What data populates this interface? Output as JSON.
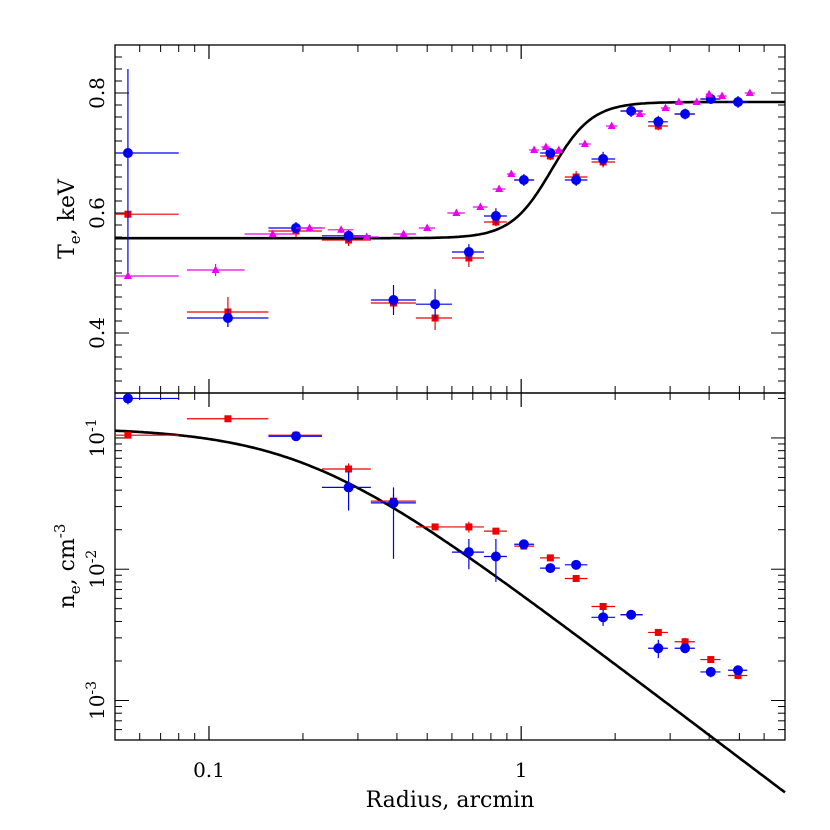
{
  "chart_data": [
    {
      "type": "scatter",
      "panel": "top",
      "ylabel_main": "T",
      "ylabel_sub": "e",
      "ylabel_rest": ", keV",
      "xlim": [
        0.05,
        7.0
      ],
      "ylim": [
        0.3,
        0.88
      ],
      "yticks": [
        0.4,
        0.6,
        0.8
      ],
      "ytick_labels": [
        "0.4",
        "0.6",
        "0.8"
      ],
      "colors": {
        "red": "#ee0000",
        "blue": "#0000ee",
        "magenta": "#ee00ee",
        "model": "#000000"
      },
      "series": [
        {
          "marker": "square",
          "color": "red",
          "points": [
            {
              "x": 0.055,
              "y": 0.598,
              "xlo": 0.05,
              "xhi": 0.08,
              "ylo": 0.598,
              "yhi": 0.598
            },
            {
              "x": 0.115,
              "y": 0.435,
              "xlo": 0.085,
              "xhi": 0.155,
              "ylo": 0.41,
              "yhi": 0.46
            },
            {
              "x": 0.19,
              "y": 0.57,
              "xlo": 0.155,
              "xhi": 0.23,
              "ylo": 0.56,
              "yhi": 0.58
            },
            {
              "x": 0.28,
              "y": 0.555,
              "xlo": 0.23,
              "xhi": 0.33,
              "ylo": 0.545,
              "yhi": 0.565
            },
            {
              "x": 0.39,
              "y": 0.45,
              "xlo": 0.33,
              "xhi": 0.46,
              "ylo": 0.44,
              "yhi": 0.46
            },
            {
              "x": 0.53,
              "y": 0.425,
              "xlo": 0.46,
              "xhi": 0.6,
              "ylo": 0.405,
              "yhi": 0.445
            },
            {
              "x": 0.68,
              "y": 0.525,
              "xlo": 0.6,
              "xhi": 0.76,
              "ylo": 0.51,
              "yhi": 0.54
            },
            {
              "x": 0.83,
              "y": 0.585,
              "xlo": 0.76,
              "xhi": 0.9,
              "ylo": 0.578,
              "yhi": 0.592
            },
            {
              "x": 1.02,
              "y": 0.655,
              "xlo": 0.95,
              "xhi": 1.1,
              "ylo": 0.648,
              "yhi": 0.662
            },
            {
              "x": 1.24,
              "y": 0.695,
              "xlo": 1.15,
              "xhi": 1.33,
              "ylo": 0.688,
              "yhi": 0.702
            },
            {
              "x": 1.5,
              "y": 0.66,
              "xlo": 1.38,
              "xhi": 1.63,
              "ylo": 0.65,
              "yhi": 0.67
            },
            {
              "x": 1.83,
              "y": 0.685,
              "xlo": 1.68,
              "xhi": 2.0,
              "ylo": 0.676,
              "yhi": 0.694
            },
            {
              "x": 2.25,
              "y": 0.77,
              "xlo": 2.08,
              "xhi": 2.45,
              "ylo": 0.763,
              "yhi": 0.777
            },
            {
              "x": 2.75,
              "y": 0.745,
              "xlo": 2.55,
              "xhi": 2.95,
              "ylo": 0.738,
              "yhi": 0.752
            },
            {
              "x": 3.35,
              "y": 0.765,
              "xlo": 3.1,
              "xhi": 3.6,
              "ylo": 0.758,
              "yhi": 0.772
            },
            {
              "x": 4.05,
              "y": 0.79,
              "xlo": 3.75,
              "xhi": 4.35,
              "ylo": 0.783,
              "yhi": 0.797
            },
            {
              "x": 4.95,
              "y": 0.785,
              "xlo": 4.6,
              "xhi": 5.3,
              "ylo": 0.778,
              "yhi": 0.792
            }
          ]
        },
        {
          "marker": "circle",
          "color": "blue",
          "points": [
            {
              "x": 0.055,
              "y": 0.7,
              "xlo": 0.05,
              "xhi": 0.08,
              "ylo": 0.49,
              "yhi": 0.84
            },
            {
              "x": 0.115,
              "y": 0.425,
              "xlo": 0.085,
              "xhi": 0.155,
              "ylo": 0.41,
              "yhi": 0.44
            },
            {
              "x": 0.19,
              "y": 0.575,
              "xlo": 0.155,
              "xhi": 0.23,
              "ylo": 0.565,
              "yhi": 0.585
            },
            {
              "x": 0.28,
              "y": 0.562,
              "xlo": 0.23,
              "xhi": 0.33,
              "ylo": 0.552,
              "yhi": 0.572
            },
            {
              "x": 0.39,
              "y": 0.455,
              "xlo": 0.33,
              "xhi": 0.46,
              "ylo": 0.43,
              "yhi": 0.48
            },
            {
              "x": 0.53,
              "y": 0.448,
              "xlo": 0.46,
              "xhi": 0.6,
              "ylo": 0.423,
              "yhi": 0.473
            },
            {
              "x": 0.68,
              "y": 0.535,
              "xlo": 0.6,
              "xhi": 0.76,
              "ylo": 0.522,
              "yhi": 0.548
            },
            {
              "x": 0.83,
              "y": 0.595,
              "xlo": 0.76,
              "xhi": 0.9,
              "ylo": 0.582,
              "yhi": 0.608
            },
            {
              "x": 1.02,
              "y": 0.655,
              "xlo": 0.95,
              "xhi": 1.1,
              "ylo": 0.645,
              "yhi": 0.665
            },
            {
              "x": 1.24,
              "y": 0.7,
              "xlo": 1.15,
              "xhi": 1.33,
              "ylo": 0.692,
              "yhi": 0.708
            },
            {
              "x": 1.5,
              "y": 0.655,
              "xlo": 1.38,
              "xhi": 1.63,
              "ylo": 0.645,
              "yhi": 0.665
            },
            {
              "x": 1.83,
              "y": 0.69,
              "xlo": 1.68,
              "xhi": 2.0,
              "ylo": 0.678,
              "yhi": 0.702
            },
            {
              "x": 2.25,
              "y": 0.77,
              "xlo": 2.08,
              "xhi": 2.45,
              "ylo": 0.76,
              "yhi": 0.78
            },
            {
              "x": 2.75,
              "y": 0.752,
              "xlo": 2.55,
              "xhi": 2.95,
              "ylo": 0.742,
              "yhi": 0.762
            },
            {
              "x": 3.35,
              "y": 0.765,
              "xlo": 3.1,
              "xhi": 3.6,
              "ylo": 0.756,
              "yhi": 0.774
            },
            {
              "x": 4.05,
              "y": 0.79,
              "xlo": 3.75,
              "xhi": 4.35,
              "ylo": 0.782,
              "yhi": 0.798
            },
            {
              "x": 4.95,
              "y": 0.785,
              "xlo": 4.6,
              "xhi": 5.3,
              "ylo": 0.775,
              "yhi": 0.795
            }
          ]
        },
        {
          "marker": "triangle",
          "color": "magenta",
          "points": [
            {
              "x": 0.055,
              "y": 0.495,
              "xlo": 0.05,
              "xhi": 0.08,
              "ylo": 0.495,
              "yhi": 0.495
            },
            {
              "x": 0.105,
              "y": 0.505,
              "xlo": 0.085,
              "xhi": 0.13,
              "ylo": 0.495,
              "yhi": 0.515
            },
            {
              "x": 0.16,
              "y": 0.565,
              "xlo": 0.13,
              "xhi": 0.19,
              "ylo": 0.56,
              "yhi": 0.57
            },
            {
              "x": 0.21,
              "y": 0.575,
              "xlo": 0.19,
              "xhi": 0.235,
              "ylo": 0.57,
              "yhi": 0.58
            },
            {
              "x": 0.265,
              "y": 0.572,
              "xlo": 0.24,
              "xhi": 0.29,
              "ylo": 0.567,
              "yhi": 0.577
            },
            {
              "x": 0.32,
              "y": 0.56,
              "xlo": 0.29,
              "xhi": 0.35,
              "ylo": 0.555,
              "yhi": 0.565
            },
            {
              "x": 0.42,
              "y": 0.565,
              "xlo": 0.39,
              "xhi": 0.46,
              "ylo": 0.56,
              "yhi": 0.57
            },
            {
              "x": 0.5,
              "y": 0.575,
              "xlo": 0.47,
              "xhi": 0.53,
              "ylo": 0.57,
              "yhi": 0.58
            },
            {
              "x": 0.62,
              "y": 0.6,
              "xlo": 0.58,
              "xhi": 0.66,
              "ylo": 0.595,
              "yhi": 0.605
            },
            {
              "x": 0.74,
              "y": 0.61,
              "xlo": 0.7,
              "xhi": 0.78,
              "ylo": 0.605,
              "yhi": 0.615
            },
            {
              "x": 0.85,
              "y": 0.64,
              "xlo": 0.81,
              "xhi": 0.89,
              "ylo": 0.635,
              "yhi": 0.645
            },
            {
              "x": 0.93,
              "y": 0.665,
              "xlo": 0.9,
              "xhi": 0.96,
              "ylo": 0.66,
              "yhi": 0.67
            },
            {
              "x": 1.1,
              "y": 0.705,
              "xlo": 1.06,
              "xhi": 1.14,
              "ylo": 0.7,
              "yhi": 0.71
            },
            {
              "x": 1.2,
              "y": 0.71,
              "xlo": 1.16,
              "xhi": 1.24,
              "ylo": 0.705,
              "yhi": 0.715
            },
            {
              "x": 1.32,
              "y": 0.705,
              "xlo": 1.28,
              "xhi": 1.36,
              "ylo": 0.7,
              "yhi": 0.71
            },
            {
              "x": 1.6,
              "y": 0.715,
              "xlo": 1.53,
              "xhi": 1.67,
              "ylo": 0.71,
              "yhi": 0.72
            },
            {
              "x": 1.95,
              "y": 0.745,
              "xlo": 1.87,
              "xhi": 2.03,
              "ylo": 0.74,
              "yhi": 0.75
            },
            {
              "x": 2.4,
              "y": 0.765,
              "xlo": 2.3,
              "xhi": 2.5,
              "ylo": 0.76,
              "yhi": 0.77
            },
            {
              "x": 2.9,
              "y": 0.775,
              "xlo": 2.8,
              "xhi": 3.0,
              "ylo": 0.77,
              "yhi": 0.78
            },
            {
              "x": 3.2,
              "y": 0.785,
              "xlo": 3.1,
              "xhi": 3.3,
              "ylo": 0.78,
              "yhi": 0.79
            },
            {
              "x": 3.65,
              "y": 0.785,
              "xlo": 3.55,
              "xhi": 3.75,
              "ylo": 0.78,
              "yhi": 0.79
            },
            {
              "x": 4.0,
              "y": 0.798,
              "xlo": 3.9,
              "xhi": 4.1,
              "ylo": 0.793,
              "yhi": 0.803
            },
            {
              "x": 4.4,
              "y": 0.795,
              "xlo": 4.25,
              "xhi": 4.55,
              "ylo": 0.79,
              "yhi": 0.8
            },
            {
              "x": 5.4,
              "y": 0.8,
              "xlo": 5.2,
              "xhi": 5.6,
              "ylo": 0.795,
              "yhi": 0.805
            }
          ]
        }
      ],
      "model_curve": {
        "type": "tanh_step",
        "low": 0.558,
        "high": 0.785,
        "center_x": 1.25,
        "width_log10": 0.13
      }
    },
    {
      "type": "scatter",
      "panel": "bottom",
      "xlabel": "Radius, arcmin",
      "xtick_labels": [
        "0.1",
        "1"
      ],
      "xticks": [
        0.1,
        1
      ],
      "ylabel_main": "n",
      "ylabel_sub": "e",
      "ylabel_rest": ", cm",
      "ylabel_sup": "-3",
      "xlim": [
        0.05,
        7.0
      ],
      "ylim": [
        0.0005,
        0.22
      ],
      "yscale": "log",
      "yticks": [
        0.001,
        0.01,
        0.1
      ],
      "ytick_labels": [
        {
          "base": "10",
          "exp": "-3"
        },
        {
          "base": "10",
          "exp": "-2"
        },
        {
          "base": "10",
          "exp": "-1"
        }
      ],
      "series": [
        {
          "marker": "square",
          "color": "red",
          "points": [
            {
              "x": 0.055,
              "y": 0.105,
              "xlo": 0.04,
              "xhi": 0.08,
              "ylo": 0.1,
              "yhi": 0.11
            },
            {
              "x": 0.115,
              "y": 0.14,
              "xlo": 0.085,
              "xhi": 0.155,
              "ylo": 0.134,
              "yhi": 0.146
            },
            {
              "x": 0.19,
              "y": 0.105,
              "xlo": 0.155,
              "xhi": 0.23,
              "ylo": 0.1,
              "yhi": 0.11
            },
            {
              "x": 0.28,
              "y": 0.058,
              "xlo": 0.23,
              "xhi": 0.33,
              "ylo": 0.052,
              "yhi": 0.064
            },
            {
              "x": 0.39,
              "y": 0.033,
              "xlo": 0.33,
              "xhi": 0.46,
              "ylo": 0.029,
              "yhi": 0.037
            },
            {
              "x": 0.53,
              "y": 0.021,
              "xlo": 0.46,
              "xhi": 0.6,
              "ylo": 0.02,
              "yhi": 0.022
            },
            {
              "x": 0.68,
              "y": 0.021,
              "xlo": 0.6,
              "xhi": 0.76,
              "ylo": 0.019,
              "yhi": 0.023
            },
            {
              "x": 0.83,
              "y": 0.0195,
              "xlo": 0.76,
              "xhi": 0.9,
              "ylo": 0.0185,
              "yhi": 0.0205
            },
            {
              "x": 1.02,
              "y": 0.015,
              "xlo": 0.95,
              "xhi": 1.1,
              "ylo": 0.0143,
              "yhi": 0.0157
            },
            {
              "x": 1.24,
              "y": 0.0122,
              "xlo": 1.15,
              "xhi": 1.33,
              "ylo": 0.0116,
              "yhi": 0.0128
            },
            {
              "x": 1.5,
              "y": 0.0085,
              "xlo": 1.38,
              "xhi": 1.63,
              "ylo": 0.008,
              "yhi": 0.009
            },
            {
              "x": 1.83,
              "y": 0.0052,
              "xlo": 1.68,
              "xhi": 2.0,
              "ylo": 0.0049,
              "yhi": 0.0055
            },
            {
              "x": 2.25,
              "y": 0.0045,
              "xlo": 2.08,
              "xhi": 2.45,
              "ylo": 0.0042,
              "yhi": 0.0048
            },
            {
              "x": 2.75,
              "y": 0.0033,
              "xlo": 2.55,
              "xhi": 2.95,
              "ylo": 0.0031,
              "yhi": 0.0035
            },
            {
              "x": 3.35,
              "y": 0.0028,
              "xlo": 3.1,
              "xhi": 3.6,
              "ylo": 0.0026,
              "yhi": 0.003
            },
            {
              "x": 4.05,
              "y": 0.00205,
              "xlo": 3.75,
              "xhi": 4.35,
              "ylo": 0.00193,
              "yhi": 0.00217
            },
            {
              "x": 4.95,
              "y": 0.00155,
              "xlo": 4.6,
              "xhi": 5.3,
              "ylo": 0.00145,
              "yhi": 0.00165
            }
          ]
        },
        {
          "marker": "circle",
          "color": "blue",
          "points": [
            {
              "x": 0.055,
              "y": 0.2,
              "xlo": 0.04,
              "xhi": 0.08,
              "ylo": 0.18,
              "yhi": 0.22
            },
            {
              "x": 0.19,
              "y": 0.103,
              "xlo": 0.155,
              "xhi": 0.23,
              "ylo": 0.097,
              "yhi": 0.109
            },
            {
              "x": 0.28,
              "y": 0.042,
              "xlo": 0.23,
              "xhi": 0.33,
              "ylo": 0.028,
              "yhi": 0.056
            },
            {
              "x": 0.39,
              "y": 0.032,
              "xlo": 0.33,
              "xhi": 0.46,
              "ylo": 0.012,
              "yhi": 0.042
            },
            {
              "x": 0.68,
              "y": 0.0135,
              "xlo": 0.6,
              "xhi": 0.76,
              "ylo": 0.01,
              "yhi": 0.017
            },
            {
              "x": 0.83,
              "y": 0.0125,
              "xlo": 0.76,
              "xhi": 0.9,
              "ylo": 0.008,
              "yhi": 0.017
            },
            {
              "x": 1.02,
              "y": 0.0155,
              "xlo": 0.95,
              "xhi": 1.1,
              "ylo": 0.0147,
              "yhi": 0.0163
            },
            {
              "x": 1.24,
              "y": 0.0102,
              "xlo": 1.15,
              "xhi": 1.33,
              "ylo": 0.0095,
              "yhi": 0.0109
            },
            {
              "x": 1.5,
              "y": 0.0108,
              "xlo": 1.38,
              "xhi": 1.63,
              "ylo": 0.0102,
              "yhi": 0.0114
            },
            {
              "x": 1.83,
              "y": 0.0043,
              "xlo": 1.68,
              "xhi": 2.0,
              "ylo": 0.0037,
              "yhi": 0.0049
            },
            {
              "x": 2.25,
              "y": 0.0045,
              "xlo": 2.08,
              "xhi": 2.45,
              "ylo": 0.0042,
              "yhi": 0.0048
            },
            {
              "x": 2.75,
              "y": 0.0025,
              "xlo": 2.55,
              "xhi": 2.95,
              "ylo": 0.0021,
              "yhi": 0.0029
            },
            {
              "x": 3.35,
              "y": 0.0025,
              "xlo": 3.1,
              "xhi": 3.6,
              "ylo": 0.0023,
              "yhi": 0.0027
            },
            {
              "x": 4.05,
              "y": 0.00165,
              "xlo": 3.75,
              "xhi": 4.35,
              "ylo": 0.0015,
              "yhi": 0.0018
            },
            {
              "x": 4.95,
              "y": 0.0017,
              "xlo": 4.6,
              "xhi": 5.3,
              "ylo": 0.0017,
              "yhi": 0.0017
            }
          ]
        }
      ],
      "model_curve": {
        "type": "beta_model",
        "n0": 0.12,
        "rc": 0.2,
        "beta": 0.6
      }
    }
  ]
}
